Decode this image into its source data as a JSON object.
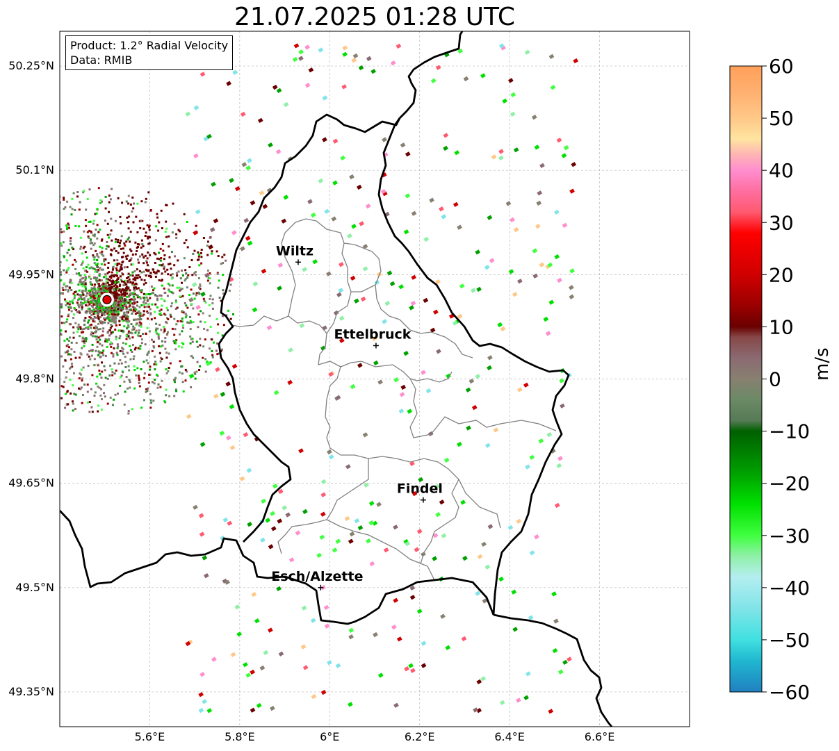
{
  "title": "21.07.2025 01:28 UTC",
  "info": {
    "product": "Product: 1.2° Radial Velocity",
    "data": "Data: RMIB"
  },
  "map": {
    "lon_range": [
      5.4,
      6.8
    ],
    "lat_range": [
      49.3,
      50.3
    ],
    "lat_ticks": [
      {
        "value": 50.25,
        "label": "50.25°N"
      },
      {
        "value": 50.1,
        "label": "50.1°N"
      },
      {
        "value": 49.95,
        "label": "49.95°N"
      },
      {
        "value": 49.8,
        "label": "49.8°N"
      },
      {
        "value": 49.65,
        "label": "49.65°N"
      },
      {
        "value": 49.5,
        "label": "49.5°N"
      },
      {
        "value": 49.35,
        "label": "49.35°N"
      }
    ],
    "lon_ticks": [
      {
        "value": 5.6,
        "label": "5.6°E"
      },
      {
        "value": 5.8,
        "label": "5.8°E"
      },
      {
        "value": 6.0,
        "label": "6°E"
      },
      {
        "value": 6.2,
        "label": "6.2°E"
      },
      {
        "value": 6.4,
        "label": "6.4°E"
      },
      {
        "value": 6.6,
        "label": "6.6°E"
      }
    ],
    "cities": [
      {
        "name": "Wiltz",
        "lon": 5.93,
        "lat": 49.968
      },
      {
        "name": "Ettelbruck",
        "lon": 6.103,
        "lat": 49.848
      },
      {
        "name": "Findel",
        "lon": 6.208,
        "lat": 49.626
      },
      {
        "name": "Esch/Alzette",
        "lon": 5.98,
        "lat": 49.5
      }
    ],
    "radar": {
      "lon": 5.505,
      "lat": 49.914
    },
    "grid": true
  },
  "colorbar": {
    "label": "m/s",
    "range": [
      -60,
      60
    ],
    "ticks": [
      {
        "value": 60,
        "label": "60"
      },
      {
        "value": 50,
        "label": "50"
      },
      {
        "value": 40,
        "label": "40"
      },
      {
        "value": 30,
        "label": "30"
      },
      {
        "value": 20,
        "label": "20"
      },
      {
        "value": 10,
        "label": "10"
      },
      {
        "value": 0,
        "label": "0"
      },
      {
        "value": -10,
        "label": "−10"
      },
      {
        "value": -20,
        "label": "−20"
      },
      {
        "value": -30,
        "label": "−30"
      },
      {
        "value": -40,
        "label": "−40"
      },
      {
        "value": -50,
        "label": "−50"
      },
      {
        "value": -60,
        "label": "−60"
      }
    ],
    "stops": [
      {
        "value": 60,
        "color": "#ffa05a"
      },
      {
        "value": 55,
        "color": "#ffb070"
      },
      {
        "value": 50,
        "color": "#ffc888"
      },
      {
        "value": 46,
        "color": "#ffe4a0"
      },
      {
        "value": 43,
        "color": "#ffb4b4"
      },
      {
        "value": 40,
        "color": "#ff8ecf"
      },
      {
        "value": 36,
        "color": "#ff6ea0"
      },
      {
        "value": 32,
        "color": "#ff5a70"
      },
      {
        "value": 28,
        "color": "#ff0000"
      },
      {
        "value": 20,
        "color": "#d00000"
      },
      {
        "value": 14,
        "color": "#9a0000"
      },
      {
        "value": 10,
        "color": "#6a0000"
      },
      {
        "value": 8,
        "color": "#884848"
      },
      {
        "value": 4,
        "color": "#8a6a72"
      },
      {
        "value": 0,
        "color": "#888070"
      },
      {
        "value": -4,
        "color": "#6b8a66"
      },
      {
        "value": -8,
        "color": "#557a55"
      },
      {
        "value": -10,
        "color": "#006000"
      },
      {
        "value": -18,
        "color": "#00a000"
      },
      {
        "value": -24,
        "color": "#00e000"
      },
      {
        "value": -30,
        "color": "#40ff40"
      },
      {
        "value": -34,
        "color": "#90f0a8"
      },
      {
        "value": -38,
        "color": "#b4eef0"
      },
      {
        "value": -44,
        "color": "#80e4e8"
      },
      {
        "value": -50,
        "color": "#40e0e0"
      },
      {
        "value": -54,
        "color": "#20b8d0"
      },
      {
        "value": -60,
        "color": "#2080c0"
      }
    ]
  }
}
